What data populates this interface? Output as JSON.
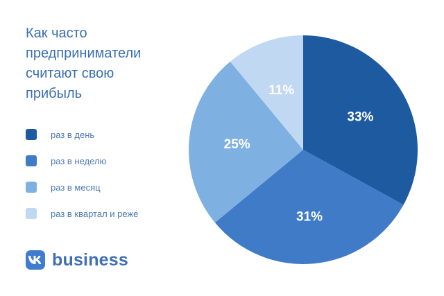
{
  "title": "Как часто\nпредприниматели\nсчитают свою\nприбыль",
  "legend": [
    {
      "label": "раз в день",
      "color": "#1e5aa0"
    },
    {
      "label": "раз в неделю",
      "color": "#3f7bc6"
    },
    {
      "label": "раз в месяц",
      "color": "#7fb0e2"
    },
    {
      "label": "раз в квартал и реже",
      "color": "#c1d8f2"
    }
  ],
  "brand": {
    "icon": "vk-icon",
    "name": "business"
  },
  "chart_data": {
    "type": "pie",
    "categories": [
      "раз в день",
      "раз в неделю",
      "раз в месяц",
      "раз в квартал и реже"
    ],
    "values": [
      33,
      31,
      25,
      11
    ],
    "labels": [
      "33%",
      "31%",
      "25%",
      "11%"
    ],
    "colors": [
      "#1e5aa0",
      "#3f7bc6",
      "#7fb0e2",
      "#c1d8f2"
    ],
    "start": "top",
    "direction": "clockwise",
    "title": "Как часто предприниматели считают свою прибыль"
  }
}
